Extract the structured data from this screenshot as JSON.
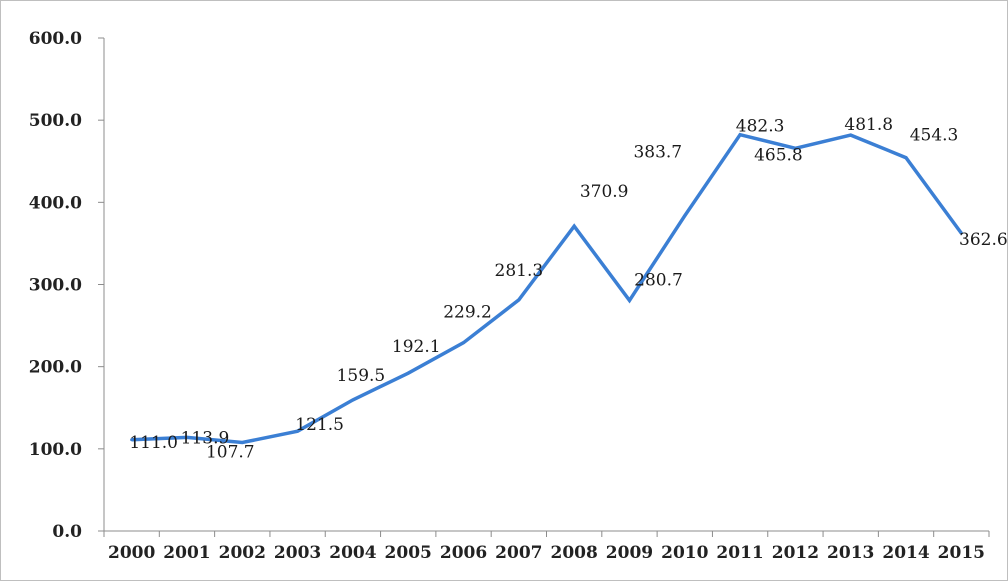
{
  "chart_data": {
    "type": "line",
    "title": "",
    "xlabel": "",
    "ylabel": "",
    "categories": [
      "2000",
      "2001",
      "2002",
      "2003",
      "2004",
      "2005",
      "2006",
      "2007",
      "2008",
      "2009",
      "2010",
      "2011",
      "2012",
      "2013",
      "2014",
      "2015"
    ],
    "series": [
      {
        "values": [
          111.0,
          113.9,
          107.7,
          121.5,
          159.5,
          192.1,
          229.2,
          281.3,
          370.9,
          280.7,
          383.7,
          482.3,
          465.8,
          481.8,
          454.3,
          362.6
        ],
        "labels": [
          "111.0",
          "113.9",
          "107.7",
          "121.5",
          "159.5",
          "192.1",
          "229.2",
          "281.3",
          "370.9",
          "280.7",
          "383.7",
          "482.3",
          "465.8",
          "481.8",
          "454.3",
          "362.6"
        ],
        "color": "#3b7fd4"
      }
    ],
    "ylim": [
      0,
      600
    ],
    "yticks": [
      "0.0",
      "100.0",
      "200.0",
      "300.0",
      "400.0",
      "500.0",
      "600.0"
    ],
    "grid": false,
    "legend": "none"
  }
}
